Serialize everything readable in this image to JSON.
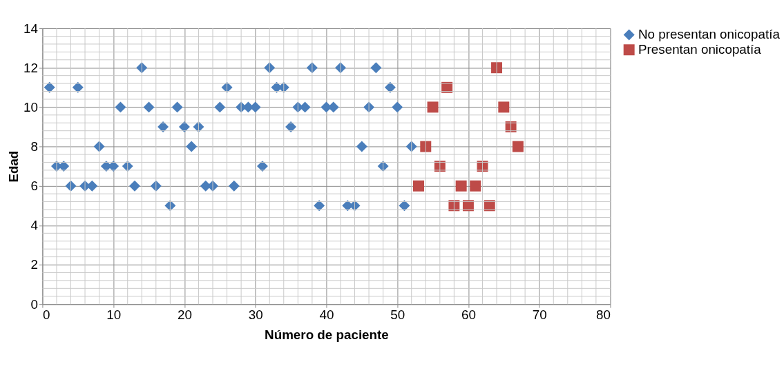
{
  "chart_data": {
    "type": "scatter",
    "xlabel": "Número de paciente",
    "ylabel": "Edad",
    "xlim": [
      0,
      80
    ],
    "xticks": [
      0,
      10,
      20,
      30,
      40,
      50,
      60,
      70,
      80
    ],
    "ylim": [
      0,
      14
    ],
    "yticks": [
      0,
      2,
      4,
      6,
      8,
      10,
      12,
      14
    ],
    "grid": true,
    "legend": "right",
    "series": [
      {
        "name": "No presentan onicopatía",
        "color": "#4a7ebb",
        "marker": "diamond",
        "x": [
          1,
          2,
          3,
          4,
          5,
          6,
          7,
          8,
          9,
          10,
          11,
          12,
          13,
          14,
          15,
          16,
          17,
          18,
          19,
          20,
          21,
          22,
          23,
          24,
          25,
          26,
          27,
          28,
          29,
          30,
          31,
          32,
          33,
          34,
          35,
          36,
          37,
          38,
          39,
          40,
          41,
          42,
          43,
          44,
          45,
          46,
          47,
          48,
          49,
          50,
          51,
          52
        ],
        "values": [
          11,
          7,
          7,
          6,
          11,
          6,
          6,
          8,
          7,
          7,
          10,
          7,
          6,
          12,
          10,
          6,
          9,
          5,
          10,
          9,
          8,
          9,
          6,
          6,
          10,
          11,
          6,
          10,
          10,
          10,
          7,
          12,
          11,
          11,
          9,
          10,
          10,
          12,
          5,
          10,
          10,
          12,
          5,
          5,
          8,
          10,
          12,
          7,
          11,
          10,
          5,
          8
        ]
      },
      {
        "name": "Presentan onicopatía",
        "color": "#be4b48",
        "marker": "square",
        "x": [
          53,
          54,
          55,
          56,
          57,
          58,
          59,
          60,
          61,
          62,
          63,
          64,
          65,
          66,
          67
        ],
        "values": [
          6,
          8,
          10,
          7,
          11,
          5,
          6,
          5,
          6,
          7,
          5,
          12,
          10,
          9,
          8
        ]
      }
    ]
  }
}
